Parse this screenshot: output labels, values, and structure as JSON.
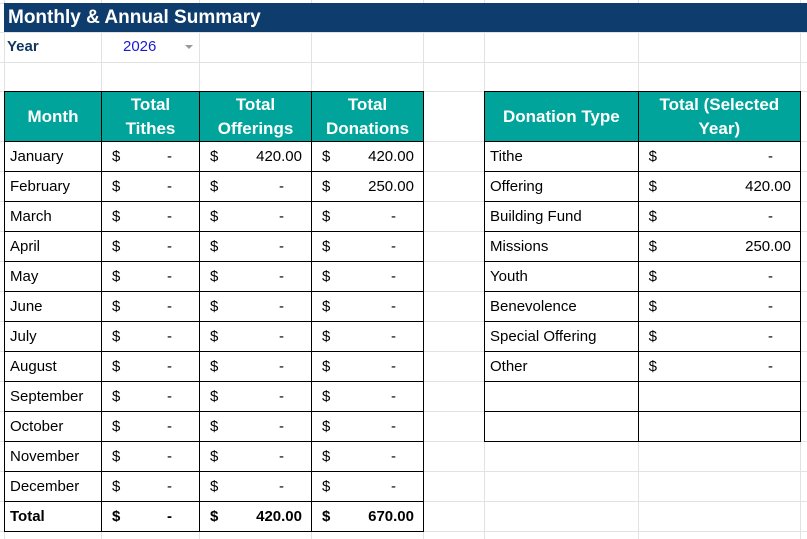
{
  "title": "Monthly & Annual Summary",
  "year_label": "Year",
  "year_value": "2026",
  "monthly": {
    "headers": [
      "Month",
      "Total Tithes",
      "Total Offerings",
      "Total Donations"
    ],
    "rows": [
      [
        "January",
        "-",
        "420.00",
        "420.00"
      ],
      [
        "February",
        "-",
        "-",
        "250.00"
      ],
      [
        "March",
        "-",
        "-",
        "-"
      ],
      [
        "April",
        "-",
        "-",
        "-"
      ],
      [
        "May",
        "-",
        "-",
        "-"
      ],
      [
        "June",
        "-",
        "-",
        "-"
      ],
      [
        "July",
        "-",
        "-",
        "-"
      ],
      [
        "August",
        "-",
        "-",
        "-"
      ],
      [
        "September",
        "-",
        "-",
        "-"
      ],
      [
        "October",
        "-",
        "-",
        "-"
      ],
      [
        "November",
        "-",
        "-",
        "-"
      ],
      [
        "December",
        "-",
        "-",
        "-"
      ]
    ],
    "total": [
      "Total",
      "-",
      "420.00",
      "670.00"
    ]
  },
  "by_type": {
    "headers": [
      "Donation Type",
      "Total (Selected Year)"
    ],
    "rows": [
      [
        "Tithe",
        "-"
      ],
      [
        "Offering",
        "420.00"
      ],
      [
        "Building Fund",
        "-"
      ],
      [
        "Missions",
        "250.00"
      ],
      [
        "Youth",
        "-"
      ],
      [
        "Benevolence",
        "-"
      ],
      [
        "Special Offering",
        "-"
      ],
      [
        "Other",
        "-"
      ],
      [
        "",
        ""
      ],
      [
        "",
        ""
      ]
    ]
  },
  "currency": "$",
  "colors": {
    "title_bg": "#0e3c6c",
    "header_bg": "#00a49a",
    "year_value": "#1a1ad0"
  }
}
